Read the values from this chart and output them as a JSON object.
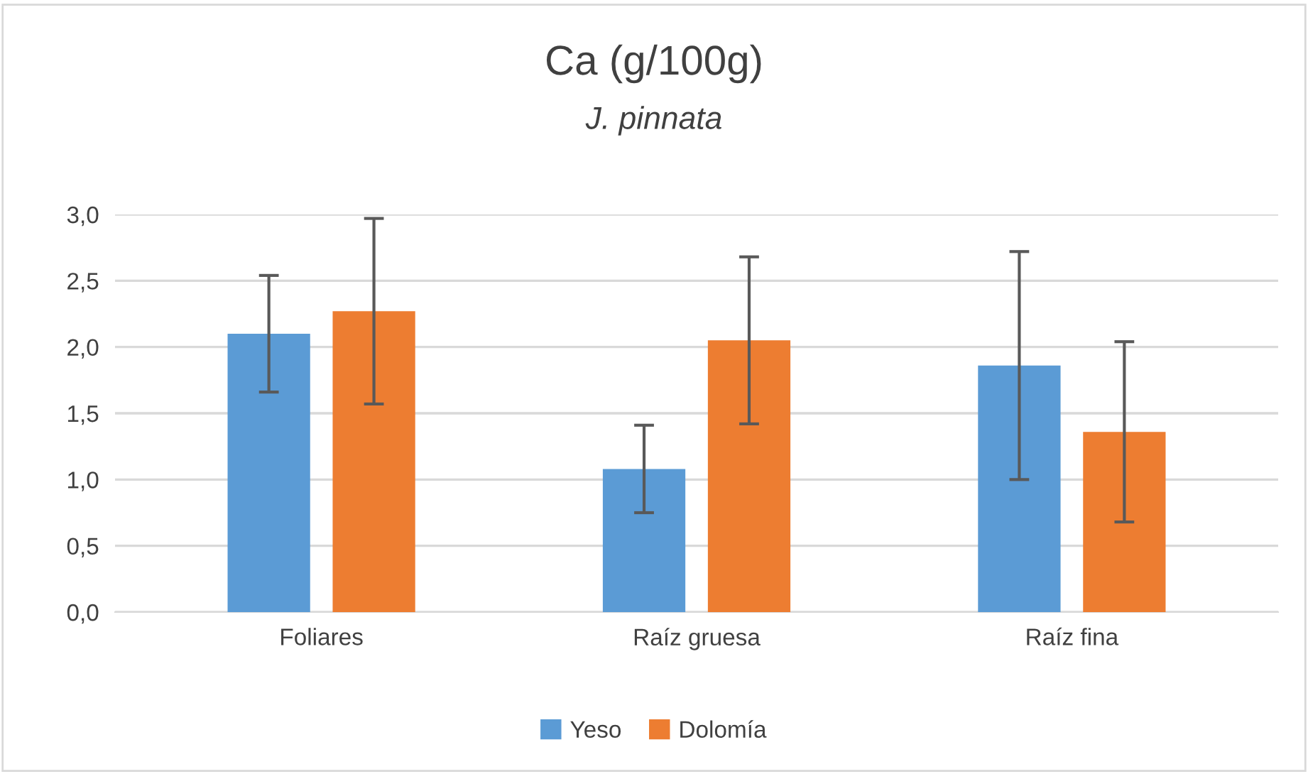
{
  "chart_data": {
    "type": "bar",
    "title": "Ca (g/100g)",
    "subtitle": "J. pinnata",
    "categories": [
      "Foliares",
      "Raíz gruesa",
      "Raíz fina"
    ],
    "series": [
      {
        "name": "Yeso",
        "color": "#5b9bd5",
        "values": [
          2.1,
          1.08,
          1.86
        ],
        "errors": [
          0.44,
          0.33,
          0.86
        ]
      },
      {
        "name": "Dolomía",
        "color": "#ed7d31",
        "values": [
          2.27,
          2.05,
          1.36
        ],
        "errors": [
          0.7,
          0.63,
          0.68
        ]
      }
    ],
    "ylim": [
      0,
      3
    ],
    "yticks": [
      {
        "value": 0,
        "label": "0,0"
      },
      {
        "value": 0.5,
        "label": "0,5"
      },
      {
        "value": 1,
        "label": "1,0"
      },
      {
        "value": 1.5,
        "label": "1,5"
      },
      {
        "value": 2,
        "label": "2,0"
      },
      {
        "value": 2.5,
        "label": "2,5"
      },
      {
        "value": 3,
        "label": "3,0"
      }
    ],
    "grid": "y",
    "legend": "bottom"
  }
}
